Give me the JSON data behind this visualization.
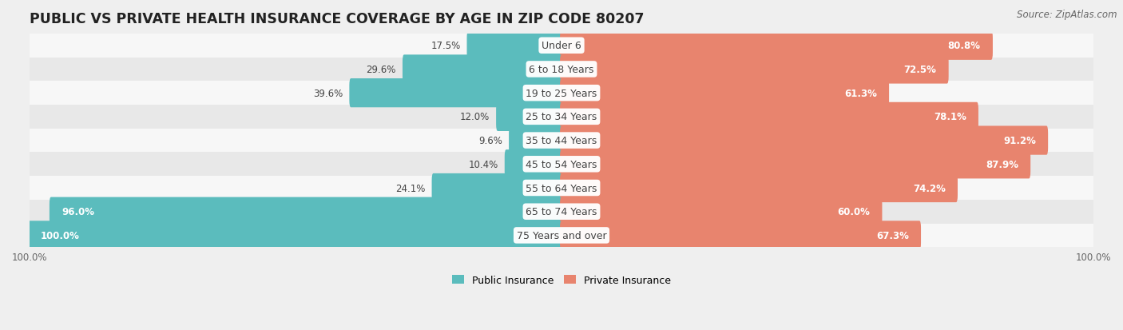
{
  "title": "PUBLIC VS PRIVATE HEALTH INSURANCE COVERAGE BY AGE IN ZIP CODE 80207",
  "source": "Source: ZipAtlas.com",
  "categories": [
    "Under 6",
    "6 to 18 Years",
    "19 to 25 Years",
    "25 to 34 Years",
    "35 to 44 Years",
    "45 to 54 Years",
    "55 to 64 Years",
    "65 to 74 Years",
    "75 Years and over"
  ],
  "public_values": [
    17.5,
    29.6,
    39.6,
    12.0,
    9.6,
    10.4,
    24.1,
    96.0,
    100.0
  ],
  "private_values": [
    80.8,
    72.5,
    61.3,
    78.1,
    91.2,
    87.9,
    74.2,
    60.0,
    67.3
  ],
  "public_color": "#5bbcbd",
  "private_color": "#e8846e",
  "bg_color": "#efefef",
  "row_bg_odd": "#f7f7f7",
  "row_bg_even": "#e8e8e8",
  "text_dark": "#444444",
  "max_value": 100.0,
  "bar_height": 0.62,
  "title_fontsize": 12.5,
  "label_fontsize": 9.0,
  "value_fontsize": 8.5,
  "legend_fontsize": 9,
  "source_fontsize": 8.5
}
